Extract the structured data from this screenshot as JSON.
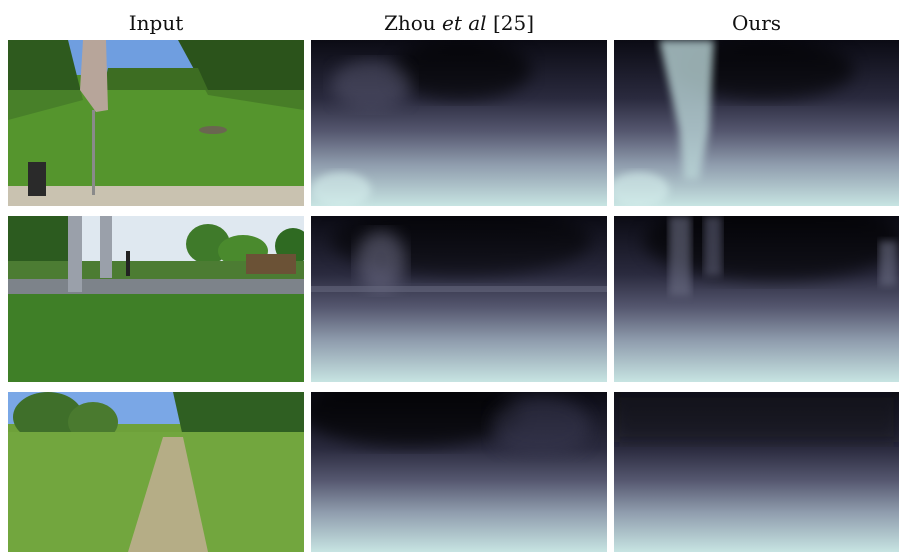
{
  "headers": {
    "input": "Input",
    "zhou_prefix": "Zhou ",
    "zhou_etal": "et al",
    "zhou_ref": " [25]",
    "ours": "Ours"
  },
  "rows": [
    {
      "input": {
        "scene": "lawn-with-closed-umbrella",
        "sky": "#6f9ee0",
        "grass": "#4f8e2a",
        "trees": "#2e5a1e",
        "path": "#c9c2b0"
      },
      "zhou": {
        "colormap": "bone-depth"
      },
      "ours": {
        "colormap": "bone-depth"
      }
    },
    {
      "input": {
        "scene": "garden-with-trellis-and-bench",
        "sky": "#dfe8f0",
        "grass": "#3f7f27",
        "trees": "#2c5b1f",
        "path": "#7d838a"
      },
      "zhou": {
        "colormap": "bone-depth"
      },
      "ours": {
        "colormap": "bone-depth"
      }
    },
    {
      "input": {
        "scene": "meadow-with-dirt-path",
        "sky": "#7aa7e6",
        "grass": "#6ea13a",
        "trees": "#2f5f22",
        "path": "#b5ad86"
      },
      "zhou": {
        "colormap": "bone-depth"
      },
      "ours": {
        "colormap": "bone-depth"
      }
    }
  ]
}
